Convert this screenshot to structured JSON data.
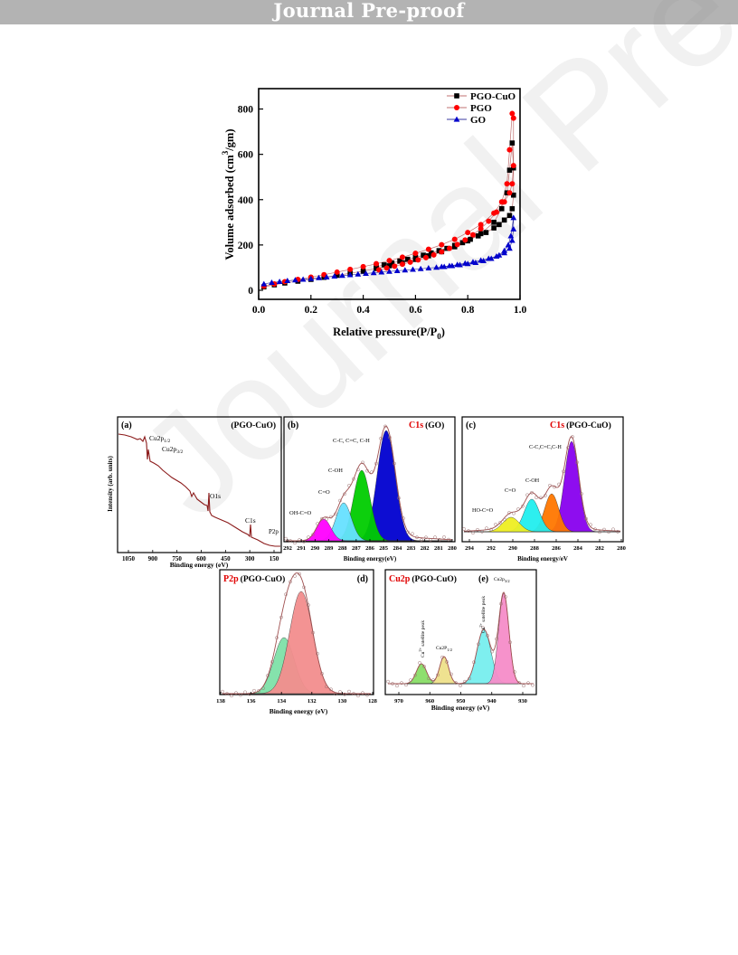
{
  "header": {
    "banner_text": "Journal Pre-proof"
  },
  "watermark": {
    "text": "Journal Pre-proof"
  },
  "chart_data": [
    {
      "type": "scatter",
      "xlabel": "Relative pressure(P/P",
      "xlabel_sub": "0",
      "xlabel_end": ")",
      "ylabel": "Volume adsorbed (cm",
      "ylabel_sup": "3",
      "ylabel_end": "/gm)",
      "xlim": [
        0.0,
        1.0
      ],
      "ylim": [
        -40,
        890
      ],
      "x_ticks": [
        "0.0",
        "0.2",
        "0.4",
        "0.6",
        "0.8",
        "1.0"
      ],
      "y_ticks": [
        "0",
        "200",
        "400",
        "600",
        "800"
      ],
      "legend_position": "top-right",
      "series": [
        {
          "name": "PGO-CuO",
          "marker": "square",
          "color": "#000000",
          "line_color": "#c07070",
          "x": [
            0.02,
            0.06,
            0.1,
            0.15,
            0.2,
            0.25,
            0.3,
            0.35,
            0.4,
            0.45,
            0.5,
            0.55,
            0.6,
            0.65,
            0.7,
            0.75,
            0.8,
            0.85,
            0.9,
            0.93,
            0.95,
            0.96,
            0.97,
            0.975,
            0.975,
            0.97,
            0.96,
            0.94,
            0.92,
            0.9,
            0.87,
            0.84,
            0.81,
            0.78,
            0.75,
            0.72,
            0.69,
            0.66,
            0.63,
            0.6,
            0.57,
            0.54,
            0.51,
            0.48,
            0.45
          ],
          "y": [
            15,
            24,
            32,
            40,
            48,
            57,
            66,
            75,
            85,
            96,
            108,
            121,
            136,
            152,
            170,
            192,
            218,
            250,
            300,
            360,
            430,
            530,
            650,
            540,
            420,
            360,
            330,
            310,
            290,
            275,
            255,
            240,
            225,
            210,
            198,
            185,
            175,
            165,
            155,
            145,
            137,
            129,
            120,
            112,
            104
          ]
        },
        {
          "name": "PGO",
          "marker": "circle",
          "color": "#ff0000",
          "line_color": "#c07070",
          "x": [
            0.02,
            0.06,
            0.1,
            0.15,
            0.2,
            0.25,
            0.3,
            0.35,
            0.4,
            0.45,
            0.5,
            0.55,
            0.6,
            0.65,
            0.7,
            0.75,
            0.8,
            0.85,
            0.9,
            0.93,
            0.95,
            0.96,
            0.97,
            0.975,
            0.975,
            0.97,
            0.96,
            0.94,
            0.91,
            0.88,
            0.85,
            0.82,
            0.79,
            0.76,
            0.73,
            0.7,
            0.67,
            0.64,
            0.61,
            0.58,
            0.55,
            0.52,
            0.49,
            0.46
          ],
          "y": [
            18,
            28,
            38,
            48,
            58,
            69,
            80,
            92,
            104,
            117,
            131,
            146,
            163,
            181,
            201,
            225,
            255,
            290,
            340,
            390,
            470,
            620,
            780,
            760,
            550,
            470,
            430,
            390,
            345,
            305,
            272,
            245,
            222,
            202,
            185,
            170,
            156,
            144,
            134,
            124,
            115,
            106,
            98,
            90
          ]
        },
        {
          "name": "GO",
          "marker": "triangle",
          "color": "#0000cc",
          "line_color": "#3a3aa0",
          "x": [
            0.02,
            0.05,
            0.08,
            0.11,
            0.14,
            0.17,
            0.2,
            0.23,
            0.26,
            0.29,
            0.32,
            0.35,
            0.38,
            0.41,
            0.44,
            0.47,
            0.5,
            0.53,
            0.56,
            0.59,
            0.62,
            0.65,
            0.68,
            0.71,
            0.74,
            0.77,
            0.8,
            0.83,
            0.86,
            0.89,
            0.92,
            0.94,
            0.955,
            0.965,
            0.975,
            0.975,
            0.97,
            0.96,
            0.94,
            0.91,
            0.88,
            0.85,
            0.82,
            0.79,
            0.76,
            0.73,
            0.7
          ],
          "y": [
            28,
            34,
            38,
            42,
            45,
            48,
            51,
            55,
            58,
            62,
            65,
            68,
            71,
            74,
            77,
            80,
            83,
            86,
            89,
            92,
            95,
            98,
            101,
            104,
            108,
            112,
            117,
            122,
            130,
            140,
            155,
            175,
            200,
            240,
            320,
            270,
            220,
            185,
            165,
            150,
            140,
            132,
            125,
            119,
            113,
            108,
            104
          ]
        }
      ]
    },
    {
      "panel": "a",
      "type": "line",
      "title": "(a)",
      "sample": "(PGO-CuO)",
      "xlabel": "Binding energy (eV)",
      "ylabel": "Intensity (arb. units)",
      "x_ticks": [
        "1050",
        "900",
        "750",
        "600",
        "450",
        "300",
        "150"
      ],
      "annotations": [
        "Cu2p",
        "1/2",
        "Cu2p",
        "3/2",
        "O1s",
        "C1s",
        "P2p"
      ],
      "line_color": "#8b1a1a"
    },
    {
      "panel": "b",
      "type": "area",
      "title": "(b)",
      "element": "C1s",
      "sample": "(GO)",
      "xlabel": "Binding energy(eV)",
      "x_ticks": [
        "292",
        "291",
        "290",
        "289",
        "288",
        "287",
        "286",
        "285",
        "284",
        "283",
        "282",
        "281",
        "280"
      ],
      "peaks": [
        {
          "label": "C-C, C=C, C-H",
          "center": 284.8,
          "color": "#0000d0"
        },
        {
          "label": "C-OH",
          "center": 286.5,
          "color": "#00cc00"
        },
        {
          "label": "C=O",
          "center": 287.8,
          "color": "#66e0ff"
        },
        {
          "label": "OH-C=O",
          "center": 289.3,
          "color": "#ff00ff"
        }
      ]
    },
    {
      "panel": "c",
      "type": "area",
      "title": "(c)",
      "element": "C1s",
      "sample": "(PGO-CuO)",
      "xlabel": "Binding energy/eV",
      "x_ticks": [
        "294",
        "292",
        "290",
        "288",
        "286",
        "284",
        "282",
        "280"
      ],
      "peaks": [
        {
          "label": "C-C,C=C,C-H",
          "center": 284.6,
          "color": "#8800ee"
        },
        {
          "label": "C-OH",
          "center": 286.3,
          "color": "#ff7700"
        },
        {
          "label": "C=O",
          "center": 288.1,
          "color": "#22eeee"
        },
        {
          "label": "HO-C=O",
          "center": 290.2,
          "color": "#eeee22"
        }
      ]
    },
    {
      "panel": "d",
      "type": "area",
      "title": "(d)",
      "element": "P2p",
      "sample": "(PGO-CuO)",
      "xlabel": "Binding energy (eV)",
      "x_ticks": [
        "138",
        "136",
        "134",
        "132",
        "130",
        "128"
      ],
      "peaks": [
        {
          "center": 133.9,
          "color": "#7ee0a8"
        },
        {
          "center": 132.5,
          "color": "#f28d8d"
        }
      ]
    },
    {
      "panel": "e",
      "type": "area",
      "title": "(e)",
      "element": "Cu2p",
      "sample": "(PGO-CuO)",
      "xlabel": "Binding energy (eV)",
      "x_ticks": [
        "970",
        "960",
        "950",
        "940",
        "930"
      ],
      "annotations": [
        "Cu",
        "2+",
        "satellite peak",
        "Cu2P",
        "1/2",
        "Cu",
        "2+",
        "satellite peak",
        "Cu2p",
        "3/2"
      ],
      "peaks": [
        {
          "center": 962.5,
          "color": "#88dd66"
        },
        {
          "center": 954.2,
          "color": "#eee08a"
        },
        {
          "center": 942.0,
          "color": "#77eeee"
        },
        {
          "center": 934.0,
          "color": "#f58cc8"
        }
      ]
    }
  ]
}
